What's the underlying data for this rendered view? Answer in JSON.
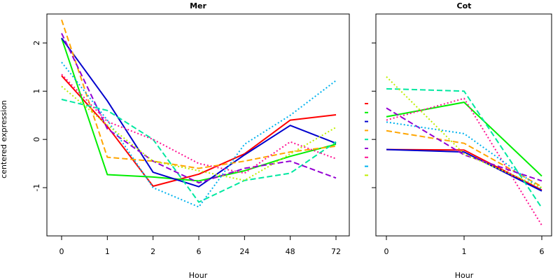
{
  "ylabel": "centered expression",
  "chart_data": [
    {
      "type": "line",
      "title": "Mer",
      "xlabel": "Hour",
      "ylabel": "centered expression",
      "categories": [
        "0",
        "1",
        "2",
        "6",
        "24",
        "48",
        "72"
      ],
      "ylim": [
        -2.0,
        2.6
      ],
      "yticks": [
        2,
        1,
        0,
        -1
      ],
      "yticklabels": [
        "2",
        "1",
        "0",
        "-1"
      ],
      "grid": false,
      "series": [
        {
          "color": "#ff0000",
          "style": "solid",
          "values": [
            1.32,
            0.27,
            -0.97,
            -0.72,
            -0.3,
            0.4,
            0.51
          ]
        },
        {
          "color": "#00ee00",
          "style": "solid",
          "values": [
            2.1,
            -0.73,
            -0.78,
            -0.86,
            -0.65,
            -0.35,
            -0.1
          ]
        },
        {
          "color": "#0000cd",
          "style": "solid",
          "values": [
            2.1,
            0.8,
            -0.68,
            -0.98,
            -0.32,
            0.29,
            -0.08
          ]
        },
        {
          "color": "#ffa500",
          "style": "dashed",
          "values": [
            2.48,
            -0.37,
            -0.45,
            -0.6,
            -0.45,
            -0.26,
            -0.14
          ]
        },
        {
          "color": "#00e8a0",
          "style": "dashed",
          "values": [
            0.83,
            0.6,
            0.0,
            -1.3,
            -0.85,
            -0.7,
            -0.05
          ]
        },
        {
          "color": "#9400d3",
          "style": "dashed",
          "values": [
            2.2,
            0.22,
            -0.45,
            -0.9,
            -0.6,
            -0.45,
            -0.8
          ]
        },
        {
          "color": "#ff1493",
          "style": "dotted",
          "values": [
            1.35,
            0.37,
            0.0,
            -0.5,
            -0.7,
            -0.05,
            -0.4
          ]
        },
        {
          "color": "#00b2ee",
          "style": "dotted",
          "values": [
            1.6,
            0.4,
            -1.0,
            -1.4,
            -0.1,
            0.5,
            1.22
          ]
        },
        {
          "color": "#bfef00",
          "style": "dotted",
          "values": [
            1.1,
            0.3,
            -0.45,
            -0.65,
            -0.85,
            -0.3,
            0.25
          ]
        }
      ]
    },
    {
      "type": "line",
      "title": "Cot",
      "xlabel": "Hour",
      "categories": [
        "0",
        "1",
        "6"
      ],
      "ylim": [
        -2.0,
        2.6
      ],
      "yticks": [
        2,
        1,
        0,
        -1
      ],
      "grid": false,
      "series": [
        {
          "color": "#ff0000",
          "style": "solid",
          "values": [
            -0.21,
            -0.22,
            -1.05
          ]
        },
        {
          "color": "#00ee00",
          "style": "solid",
          "values": [
            0.47,
            0.77,
            -0.76
          ]
        },
        {
          "color": "#0000cd",
          "style": "solid",
          "values": [
            -0.21,
            -0.26,
            -1.07
          ]
        },
        {
          "color": "#ffa500",
          "style": "dashed",
          "values": [
            0.18,
            -0.08,
            -0.98
          ]
        },
        {
          "color": "#00e8a0",
          "style": "dashed",
          "values": [
            1.05,
            1.0,
            -1.42
          ]
        },
        {
          "color": "#9400d3",
          "style": "dashed",
          "values": [
            0.65,
            -0.32,
            -0.86
          ]
        },
        {
          "color": "#ff1493",
          "style": "dotted",
          "values": [
            0.4,
            0.85,
            -1.78
          ]
        },
        {
          "color": "#00b2ee",
          "style": "dotted",
          "values": [
            0.36,
            0.12,
            -1.03
          ]
        },
        {
          "color": "#bfef00",
          "style": "dotted",
          "values": [
            1.3,
            -0.3,
            -1.0
          ]
        }
      ]
    }
  ]
}
